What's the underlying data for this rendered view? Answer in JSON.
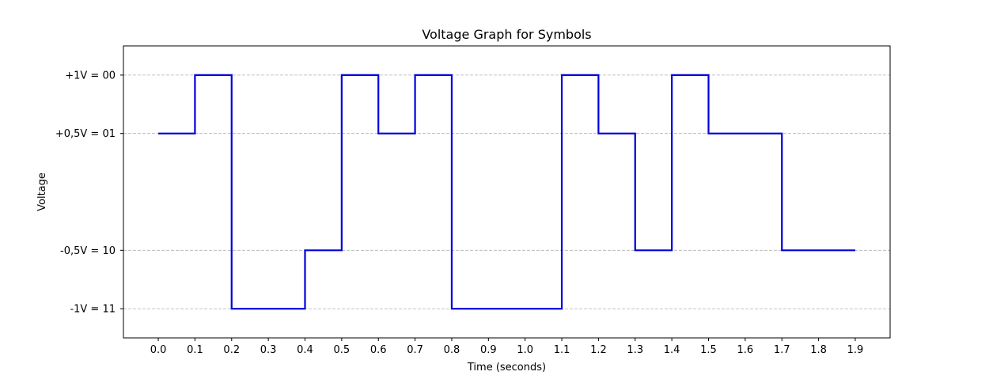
{
  "chart_data": {
    "type": "line",
    "title": "Voltage Graph for Symbols",
    "xlabel": "Time (seconds)",
    "ylabel": "Voltage",
    "xlim": [
      -0.095,
      1.995
    ],
    "ylim": [
      -1.25,
      1.25
    ],
    "x_ticks": [
      0.0,
      0.1,
      0.2,
      0.3,
      0.4,
      0.5,
      0.6,
      0.7,
      0.8,
      0.9,
      1.0,
      1.1,
      1.2,
      1.3,
      1.4,
      1.5,
      1.6,
      1.7,
      1.8,
      1.9
    ],
    "x_tick_labels": [
      "0.0",
      "0.1",
      "0.2",
      "0.3",
      "0.4",
      "0.5",
      "0.6",
      "0.7",
      "0.8",
      "0.9",
      "1.0",
      "1.1",
      "1.2",
      "1.3",
      "1.4",
      "1.5",
      "1.6",
      "1.7",
      "1.8",
      "1.9"
    ],
    "y_ticks": [
      1,
      0.5,
      -0.5,
      -1
    ],
    "y_tick_labels": [
      "+1V = 00",
      "+0,5V = 01",
      "-0,5V = 10",
      "-1V = 11"
    ],
    "grid": "horizontal dashed",
    "step": "post",
    "colors": {
      "line": "#0000dd",
      "grid": "#b0b0b0",
      "axes": "#000000"
    },
    "series": [
      {
        "x": [
          0.0,
          0.1,
          0.2,
          0.3,
          0.4,
          0.5,
          0.6,
          0.7,
          0.8,
          0.9,
          1.0,
          1.1,
          1.2,
          1.3,
          1.4,
          1.5,
          1.6,
          1.7,
          1.8,
          1.9
        ],
        "values": [
          0.5,
          1,
          -1,
          -1,
          -0.5,
          1,
          0.5,
          1,
          -1,
          -1,
          -1,
          1,
          0.5,
          -0.5,
          1,
          0.5,
          0.5,
          -0.5,
          -0.5,
          -0.5
        ]
      }
    ]
  }
}
